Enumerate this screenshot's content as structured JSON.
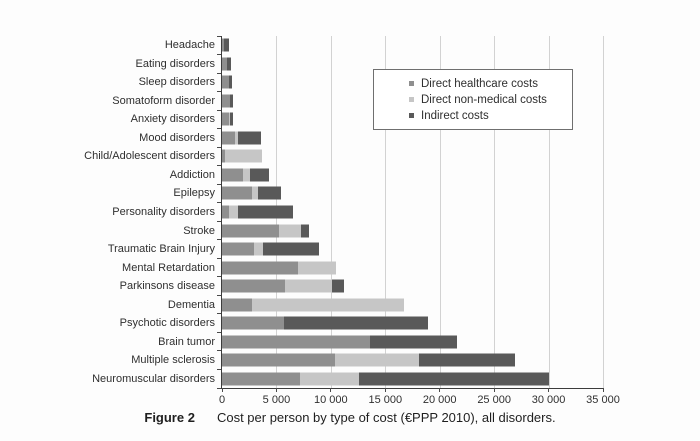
{
  "caption": {
    "figure_label": "Figure 2",
    "text": "Cost per person by type of cost (€PPP 2010), all disorders."
  },
  "colors": {
    "direct_healthcare": "#8f8f8f",
    "direct_non_medical": "#c6c6c6",
    "indirect": "#595959",
    "axis": "#3c3c3c",
    "grid": "#d2d2d2"
  },
  "legend": {
    "items": [
      {
        "label": "Direct healthcare costs",
        "color": "#8f8f8f"
      },
      {
        "label": "Direct non-medical costs",
        "color": "#c6c6c6"
      },
      {
        "label": "Indirect costs",
        "color": "#595959"
      }
    ]
  },
  "chart_data": {
    "type": "bar",
    "orientation": "horizontal",
    "stacked": true,
    "title": "Cost per person by type of cost (€PPP 2010), all disorders",
    "unit": "€PPP 2010 per person",
    "xlabel": "",
    "ylabel": "",
    "xlim": [
      0,
      35000
    ],
    "grid": "vertical",
    "legend_position": "upper-right-inside",
    "x_ticks": [
      0,
      5000,
      10000,
      15000,
      20000,
      25000,
      30000,
      35000
    ],
    "x_tick_labels": [
      "0",
      "5 000",
      "10 000",
      "15 000",
      "20 000",
      "25 000",
      "30 000",
      "35 000"
    ],
    "categories": [
      "Headache",
      "Eating disorders",
      "Sleep disorders",
      "Somatoform disorder",
      "Anxiety disorders",
      "Mood disorders",
      "Child/Adolescent disorders",
      "Addiction",
      "Epilepsy",
      "Personality disorders",
      "Stroke",
      "Traumatic Brain Injury",
      "Mental Retardation",
      "Parkinsons disease",
      "Dementia",
      "Psychotic disorders",
      "Brain tumor",
      "Multiple sclerosis",
      "Neuromuscular disorders"
    ],
    "series": [
      {
        "name": "Direct healthcare costs",
        "color": "#8f8f8f",
        "values": [
          200,
          500,
          600,
          700,
          600,
          1200,
          300,
          1900,
          2800,
          600,
          5200,
          2900,
          7000,
          5800,
          2800,
          5700,
          13600,
          10400,
          7200
        ]
      },
      {
        "name": "Direct non-medical costs",
        "color": "#c6c6c6",
        "values": [
          0,
          0,
          0,
          0,
          100,
          300,
          3400,
          700,
          500,
          900,
          2100,
          900,
          3500,
          4300,
          13900,
          0,
          0,
          7700,
          5400
        ]
      },
      {
        "name": "Indirect costs",
        "color": "#595959",
        "values": [
          400,
          300,
          300,
          300,
          300,
          2100,
          0,
          1700,
          2100,
          5000,
          700,
          5100,
          0,
          1100,
          0,
          13200,
          8000,
          8800,
          17400
        ]
      }
    ],
    "totals": [
      600,
      800,
      900,
      1000,
      1000,
      3600,
      3700,
      4300,
      5400,
      6500,
      8000,
      8900,
      10500,
      11200,
      16700,
      18900,
      21600,
      26900,
      30000
    ]
  }
}
